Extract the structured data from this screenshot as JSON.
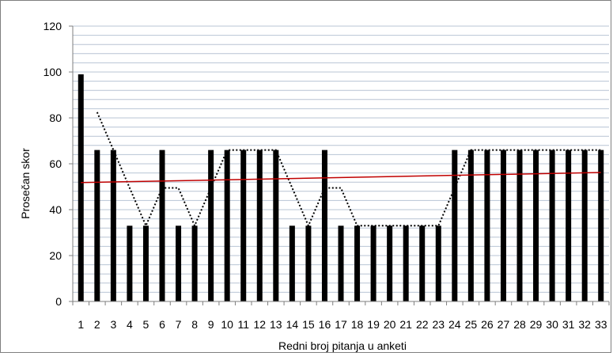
{
  "chart_data": {
    "type": "bar",
    "title": "",
    "xlabel": "Redni broj pitanja u anketi",
    "ylabel": "Prosečan skor",
    "ylim": [
      0,
      120
    ],
    "yticks": [
      0,
      20,
      40,
      60,
      80,
      100,
      120
    ],
    "grid": true,
    "legend": "none",
    "categories": [
      "1",
      "2",
      "3",
      "4",
      "5",
      "6",
      "7",
      "8",
      "9",
      "10",
      "11",
      "12",
      "13",
      "14",
      "15",
      "16",
      "17",
      "18",
      "19",
      "20",
      "21",
      "22",
      "23",
      "24",
      "25",
      "26",
      "27",
      "28",
      "29",
      "30",
      "31",
      "32",
      "33"
    ],
    "series": [
      {
        "type": "bar",
        "values": [
          99,
          66,
          66,
          33,
          33,
          66,
          33,
          33,
          66,
          66,
          66,
          66,
          66,
          33,
          33,
          66,
          33,
          33,
          33,
          33,
          33,
          33,
          33,
          66,
          66,
          66,
          66,
          66,
          66,
          66,
          66,
          66,
          66
        ]
      },
      {
        "type": "moving-average",
        "style": "dotted",
        "values": [
          null,
          82.5,
          66,
          49.5,
          33,
          49.5,
          49.5,
          33,
          49.5,
          66,
          66,
          66,
          66,
          49.5,
          33,
          49.5,
          49.5,
          33,
          33,
          33,
          33,
          33,
          33,
          49.5,
          66,
          66,
          66,
          66,
          66,
          66,
          66,
          66,
          66
        ]
      },
      {
        "type": "trendline",
        "style": "solid",
        "x": [
          1,
          33
        ],
        "values": [
          51.8,
          56.2
        ]
      }
    ],
    "colors": {
      "bars": "#000000",
      "moving_average": "#000000",
      "trendline": "#c00000",
      "grid": "#b8c4d4",
      "axis": "#7f7f7f"
    }
  }
}
